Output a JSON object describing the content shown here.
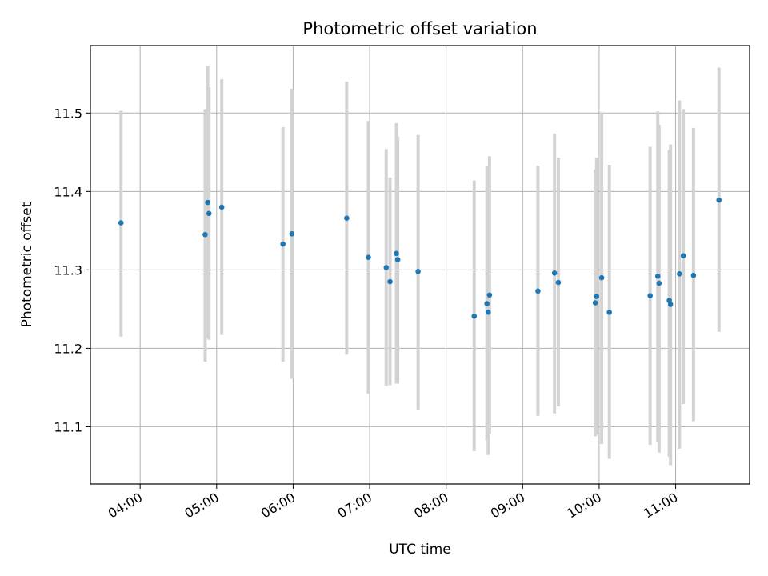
{
  "chart_data": {
    "type": "scatter",
    "title": "Photometric offset variation",
    "xlabel": "UTC time",
    "ylabel": "Photometric offset",
    "x_axis": "time of day (UTC), hours",
    "xlim": [
      "03:21",
      "11:58"
    ],
    "ylim": [
      11.027,
      11.586
    ],
    "x_ticks": [
      "04:00",
      "05:00",
      "06:00",
      "07:00",
      "08:00",
      "09:00",
      "10:00",
      "11:00"
    ],
    "y_ticks": [
      "11.1",
      "11.2",
      "11.3",
      "11.4",
      "11.5"
    ],
    "grid": true,
    "legend": "none",
    "point_color": "#1f77b4",
    "errorbar_color": "#d3d3d3",
    "points": [
      {
        "t": "03:45",
        "y": 11.36,
        "lo": 11.215,
        "hi": 11.503
      },
      {
        "t": "04:51",
        "y": 11.345,
        "lo": 11.183,
        "hi": 11.505
      },
      {
        "t": "04:53",
        "y": 11.386,
        "lo": 11.213,
        "hi": 11.56
      },
      {
        "t": "04:54",
        "y": 11.372,
        "lo": 11.211,
        "hi": 11.533
      },
      {
        "t": "05:04",
        "y": 11.38,
        "lo": 11.217,
        "hi": 11.543
      },
      {
        "t": "05:52",
        "y": 11.333,
        "lo": 11.183,
        "hi": 11.482
      },
      {
        "t": "05:59",
        "y": 11.346,
        "lo": 11.161,
        "hi": 11.531
      },
      {
        "t": "06:42",
        "y": 11.366,
        "lo": 11.192,
        "hi": 11.54
      },
      {
        "t": "06:59",
        "y": 11.316,
        "lo": 11.142,
        "hi": 11.49
      },
      {
        "t": "07:13",
        "y": 11.303,
        "lo": 11.152,
        "hi": 11.454
      },
      {
        "t": "07:16",
        "y": 11.285,
        "lo": 11.153,
        "hi": 11.418
      },
      {
        "t": "07:21",
        "y": 11.321,
        "lo": 11.155,
        "hi": 11.487
      },
      {
        "t": "07:22",
        "y": 11.313,
        "lo": 11.155,
        "hi": 11.47
      },
      {
        "t": "07:38",
        "y": 11.298,
        "lo": 11.122,
        "hi": 11.472
      },
      {
        "t": "08:22",
        "y": 11.241,
        "lo": 11.069,
        "hi": 11.414
      },
      {
        "t": "08:32",
        "y": 11.257,
        "lo": 11.083,
        "hi": 11.432
      },
      {
        "t": "08:33",
        "y": 11.246,
        "lo": 11.064,
        "hi": 11.428
      },
      {
        "t": "08:34",
        "y": 11.268,
        "lo": 11.091,
        "hi": 11.445
      },
      {
        "t": "09:12",
        "y": 11.273,
        "lo": 11.114,
        "hi": 11.433
      },
      {
        "t": "09:25",
        "y": 11.296,
        "lo": 11.117,
        "hi": 11.474
      },
      {
        "t": "09:28",
        "y": 11.284,
        "lo": 11.126,
        "hi": 11.443
      },
      {
        "t": "09:57",
        "y": 11.258,
        "lo": 11.088,
        "hi": 11.428
      },
      {
        "t": "09:58",
        "y": 11.266,
        "lo": 11.09,
        "hi": 11.443
      },
      {
        "t": "10:02",
        "y": 11.29,
        "lo": 11.078,
        "hi": 11.501
      },
      {
        "t": "10:08",
        "y": 11.246,
        "lo": 11.059,
        "hi": 11.434
      },
      {
        "t": "10:40",
        "y": 11.267,
        "lo": 11.077,
        "hi": 11.457
      },
      {
        "t": "10:46",
        "y": 11.292,
        "lo": 11.081,
        "hi": 11.502
      },
      {
        "t": "10:47",
        "y": 11.283,
        "lo": 11.067,
        "hi": 11.485
      },
      {
        "t": "10:55",
        "y": 11.261,
        "lo": 11.062,
        "hi": 11.453
      },
      {
        "t": "10:56",
        "y": 11.256,
        "lo": 11.051,
        "hi": 11.46
      },
      {
        "t": "11:03",
        "y": 11.295,
        "lo": 11.072,
        "hi": 11.516
      },
      {
        "t": "11:06",
        "y": 11.318,
        "lo": 11.129,
        "hi": 11.505
      },
      {
        "t": "11:14",
        "y": 11.293,
        "lo": 11.107,
        "hi": 11.481
      },
      {
        "t": "11:34",
        "y": 11.389,
        "lo": 11.221,
        "hi": 11.558
      }
    ]
  }
}
